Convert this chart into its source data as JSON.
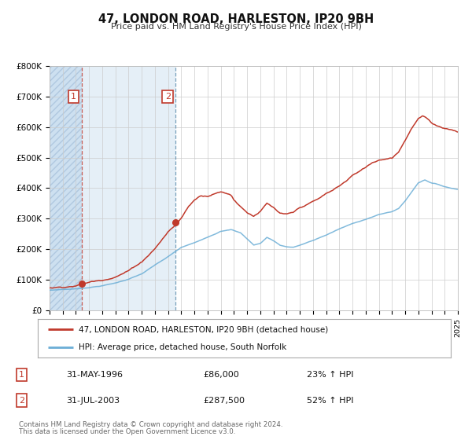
{
  "title": "47, LONDON ROAD, HARLESTON, IP20 9BH",
  "subtitle": "Price paid vs. HM Land Registry's House Price Index (HPI)",
  "background_color": "#ffffff",
  "plot_bg_color": "#ffffff",
  "shaded_region_color": "#cde0f0",
  "grid_color": "#cccccc",
  "hpi_line_color": "#6baed6",
  "price_line_color": "#c0392b",
  "sale1_date_num": 1996.42,
  "sale1_price": 86000,
  "sale2_date_num": 2003.58,
  "sale2_price": 287500,
  "xmin": 1994,
  "xmax": 2025,
  "ymin": 0,
  "ymax": 800000,
  "yticks": [
    0,
    100000,
    200000,
    300000,
    400000,
    500000,
    600000,
    700000,
    800000
  ],
  "ytick_labels": [
    "£0",
    "£100K",
    "£200K",
    "£300K",
    "£400K",
    "£500K",
    "£600K",
    "£700K",
    "£800K"
  ],
  "legend_label1": "47, LONDON ROAD, HARLESTON, IP20 9BH (detached house)",
  "legend_label2": "HPI: Average price, detached house, South Norfolk",
  "table_row1": [
    "1",
    "31-MAY-1996",
    "£86,000",
    "23% ↑ HPI"
  ],
  "table_row2": [
    "2",
    "31-JUL-2003",
    "£287,500",
    "52% ↑ HPI"
  ],
  "footer_line1": "Contains HM Land Registry data © Crown copyright and database right 2024.",
  "footer_line2": "This data is licensed under the Open Government Licence v3.0."
}
